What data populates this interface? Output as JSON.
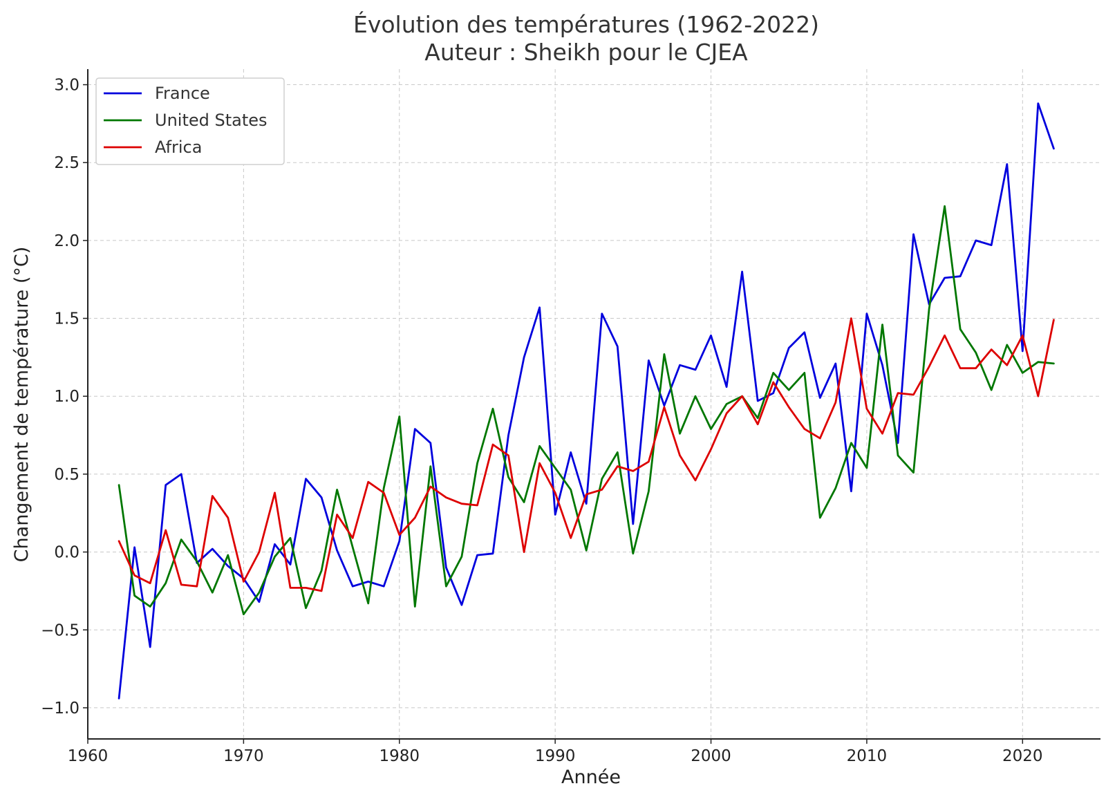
{
  "chart_data": {
    "type": "line",
    "title": "Évolution des températures (1962-2022)",
    "subtitle": "Auteur : Sheikh pour le CJEA",
    "xlabel": "Année",
    "ylabel": "Changement de température (°C)",
    "xlim": [
      1960,
      2025
    ],
    "ylim": [
      -1.2,
      3.1
    ],
    "x_ticks": [
      1960,
      1970,
      1980,
      1990,
      2000,
      2010,
      2020
    ],
    "y_ticks": [
      -1.0,
      -0.5,
      0.0,
      0.5,
      1.0,
      1.5,
      2.0,
      2.5,
      3.0
    ],
    "y_tick_labels": [
      "−1.0",
      "−0.5",
      "0.0",
      "0.5",
      "1.0",
      "1.5",
      "2.0",
      "2.5",
      "3.0"
    ],
    "grid": true,
    "legend_position": "top-left",
    "x": [
      1962,
      1963,
      1964,
      1965,
      1966,
      1967,
      1968,
      1969,
      1970,
      1971,
      1972,
      1973,
      1974,
      1975,
      1976,
      1977,
      1978,
      1979,
      1980,
      1981,
      1982,
      1983,
      1984,
      1985,
      1986,
      1987,
      1988,
      1989,
      1990,
      1991,
      1992,
      1993,
      1994,
      1995,
      1996,
      1997,
      1998,
      1999,
      2000,
      2001,
      2002,
      2003,
      2004,
      2005,
      2006,
      2007,
      2008,
      2009,
      2010,
      2011,
      2012,
      2013,
      2014,
      2015,
      2016,
      2017,
      2018,
      2019,
      2020,
      2021,
      2022
    ],
    "series": [
      {
        "name": "France",
        "color": "#0000dd",
        "values": [
          -0.94,
          0.03,
          -0.61,
          0.43,
          0.5,
          -0.07,
          0.02,
          -0.09,
          -0.17,
          -0.32,
          0.05,
          -0.08,
          0.47,
          0.35,
          0.01,
          -0.22,
          -0.19,
          -0.22,
          0.07,
          0.79,
          0.7,
          -0.1,
          -0.34,
          -0.02,
          -0.01,
          0.75,
          1.25,
          1.57,
          0.24,
          0.64,
          0.31,
          1.53,
          1.32,
          0.18,
          1.23,
          0.94,
          1.2,
          1.17,
          1.39,
          1.06,
          1.8,
          0.97,
          1.02,
          1.31,
          1.41,
          0.99,
          1.21,
          0.39,
          1.53,
          1.2,
          0.7,
          2.04,
          1.59,
          1.76,
          1.77,
          2.0,
          1.97,
          2.49,
          1.29,
          2.88,
          2.59
        ]
      },
      {
        "name": "United States",
        "color": "#007700",
        "values": [
          0.43,
          -0.28,
          -0.35,
          -0.2,
          0.08,
          -0.06,
          -0.26,
          -0.02,
          -0.4,
          -0.26,
          -0.03,
          0.09,
          -0.36,
          -0.12,
          0.4,
          0.03,
          -0.33,
          0.41,
          0.87,
          -0.35,
          0.55,
          -0.22,
          -0.03,
          0.57,
          0.92,
          0.48,
          0.32,
          0.68,
          0.54,
          0.4,
          0.01,
          0.47,
          0.64,
          -0.01,
          0.39,
          1.27,
          0.76,
          1.0,
          0.79,
          0.95,
          1.0,
          0.86,
          1.15,
          1.04,
          1.15,
          0.22,
          0.41,
          0.7,
          0.54,
          1.46,
          0.62,
          0.51,
          1.56,
          2.22,
          1.43,
          1.28,
          1.04,
          1.33,
          1.15,
          1.22,
          1.21
        ]
      },
      {
        "name": "Africa",
        "color": "#dd0000",
        "values": [
          0.07,
          -0.15,
          -0.2,
          0.14,
          -0.21,
          -0.22,
          0.36,
          0.22,
          -0.19,
          0.0,
          0.38,
          -0.23,
          -0.23,
          -0.25,
          0.24,
          0.09,
          0.45,
          0.38,
          0.11,
          0.22,
          0.42,
          0.35,
          0.31,
          0.3,
          0.69,
          0.62,
          0.0,
          0.57,
          0.38,
          0.09,
          0.37,
          0.4,
          0.55,
          0.52,
          0.58,
          0.93,
          0.62,
          0.46,
          0.66,
          0.89,
          1.0,
          0.82,
          1.09,
          0.93,
          0.79,
          0.73,
          0.96,
          1.5,
          0.92,
          0.76,
          1.02,
          1.01,
          1.19,
          1.39,
          1.18,
          1.18,
          1.3,
          1.2,
          1.39,
          1.0,
          1.49
        ]
      }
    ]
  }
}
